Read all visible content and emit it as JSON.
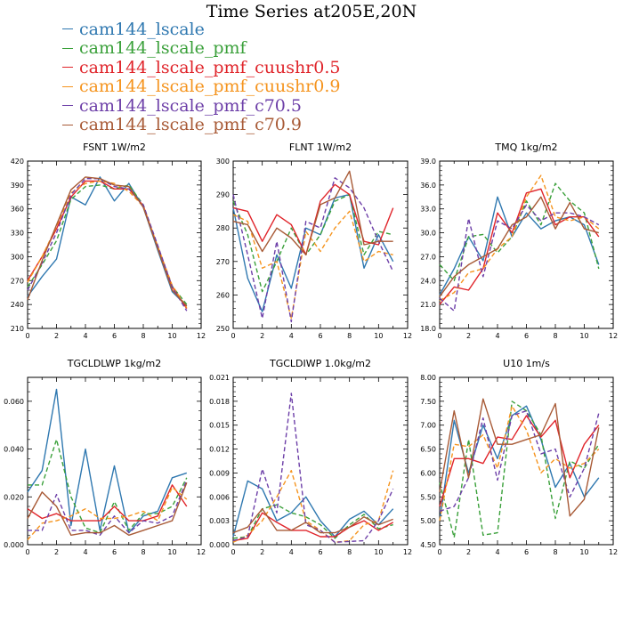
{
  "title": "Time Series at205E,20N",
  "series_styles": [
    {
      "name": "cam144_lscale",
      "color": "#2f78b0",
      "dash": "solid"
    },
    {
      "name": "cam144_lscale_pmf",
      "color": "#3aa03a",
      "dash": "dash"
    },
    {
      "name": "cam144_lscale_pmf_cuushr0.5",
      "color": "#e0242a",
      "dash": "solid"
    },
    {
      "name": "cam144_lscale_pmf_cuushr0.9",
      "color": "#f5941e",
      "dash": "dash"
    },
    {
      "name": "cam144_lscale_pmf_c70.5",
      "color": "#6d3fa8",
      "dash": "dash"
    },
    {
      "name": "cam144_lscale_pmf_c70.9",
      "color": "#a85a36",
      "dash": "solid"
    }
  ],
  "chart_data": [
    {
      "type": "line",
      "title": "FSNT   1W/m2",
      "x": [
        0,
        1,
        2,
        3,
        4,
        5,
        6,
        7,
        8,
        9,
        10,
        11
      ],
      "xlim": [
        0,
        12
      ],
      "xticks": [
        0,
        2,
        4,
        6,
        8,
        10,
        12
      ],
      "ylim": [
        210,
        420
      ],
      "yticks": [
        "210",
        "240",
        "270",
        "300",
        "330",
        "360",
        "390",
        "420"
      ],
      "series": [
        {
          "name": "cam144_lscale",
          "values": [
            250,
            275,
            297,
            375,
            365,
            400,
            370,
            392,
            362,
            308,
            256,
            238
          ]
        },
        {
          "name": "cam144_lscale_pmf",
          "values": [
            262,
            290,
            320,
            372,
            388,
            390,
            385,
            390,
            365,
            310,
            263,
            240
          ]
        },
        {
          "name": "cam144_lscale_pmf_cuushr0.5",
          "values": [
            270,
            300,
            335,
            375,
            395,
            395,
            385,
            385,
            364,
            312,
            262,
            235
          ]
        },
        {
          "name": "cam144_lscale_pmf_cuushr0.9",
          "values": [
            268,
            300,
            338,
            380,
            392,
            395,
            392,
            382,
            363,
            313,
            264,
            236
          ]
        },
        {
          "name": "cam144_lscale_pmf_c70.5",
          "values": [
            258,
            292,
            330,
            378,
            398,
            398,
            388,
            385,
            365,
            314,
            262,
            232
          ]
        },
        {
          "name": "cam144_lscale_pmf_c70.9",
          "values": [
            246,
            295,
            340,
            384,
            400,
            398,
            390,
            388,
            362,
            310,
            258,
            238
          ]
        }
      ]
    },
    {
      "type": "line",
      "title": "FLNT   1W/m2",
      "x": [
        0,
        1,
        2,
        3,
        4,
        5,
        6,
        7,
        8,
        9,
        10,
        11
      ],
      "xlim": [
        0,
        12
      ],
      "xticks": [
        0,
        2,
        4,
        6,
        8,
        10,
        12
      ],
      "ylim": [
        250,
        300
      ],
      "yticks": [
        "250",
        "260",
        "270",
        "280",
        "290",
        "300"
      ],
      "series": [
        {
          "name": "cam144_lscale",
          "values": [
            286,
            265,
            255,
            272,
            262,
            280,
            278,
            289,
            290,
            268,
            278,
            270
          ]
        },
        {
          "name": "cam144_lscale_pmf",
          "values": [
            288,
            278,
            261,
            270,
            280,
            272,
            278,
            288,
            290,
            272,
            279,
            278
          ]
        },
        {
          "name": "cam144_lscale_pmf_cuushr0.5",
          "values": [
            286,
            285,
            276,
            284,
            281,
            272,
            288,
            293,
            290,
            276,
            275,
            286
          ]
        },
        {
          "name": "cam144_lscale_pmf_cuushr0.9",
          "values": [
            284,
            282,
            268,
            270,
            253,
            279,
            273,
            280,
            285,
            270,
            273,
            272
          ]
        },
        {
          "name": "cam144_lscale_pmf_c70.5",
          "values": [
            290,
            272,
            253,
            276,
            252,
            282,
            280,
            295,
            292,
            286,
            276,
            267
          ]
        },
        {
          "name": "cam144_lscale_pmf_c70.9",
          "values": [
            282,
            281,
            273,
            280,
            277,
            272,
            287,
            289,
            297,
            275,
            276,
            276
          ]
        }
      ]
    },
    {
      "type": "line",
      "title": "TMQ   1kg/m2",
      "x": [
        0,
        1,
        2,
        3,
        4,
        5,
        6,
        7,
        8,
        9,
        10,
        11
      ],
      "xlim": [
        0,
        12
      ],
      "xticks": [
        0,
        2,
        4,
        6,
        8,
        10,
        12
      ],
      "ylim": [
        18.0,
        39.0
      ],
      "yticks": [
        "18.0",
        "21.0",
        "24.0",
        "27.0",
        "30.0",
        "33.0",
        "36.0",
        "39.0"
      ],
      "series": [
        {
          "name": "cam144_lscale",
          "values": [
            22.2,
            25.5,
            29.5,
            26.5,
            34.5,
            29.5,
            32.5,
            30.5,
            31.5,
            32,
            31,
            26
          ]
        },
        {
          "name": "cam144_lscale_pmf",
          "values": [
            26,
            24,
            29.5,
            29.8,
            27.5,
            29.5,
            34,
            31,
            36.2,
            34,
            32.5,
            25.5
          ]
        },
        {
          "name": "cam144_lscale_pmf_cuushr0.5",
          "values": [
            21,
            23.2,
            22.8,
            25.5,
            32.5,
            30,
            35,
            35.5,
            31,
            32,
            32,
            29.5
          ]
        },
        {
          "name": "cam144_lscale_pmf_cuushr0.9",
          "values": [
            21.5,
            22.5,
            25,
            25.5,
            28,
            29.5,
            34.5,
            37.2,
            32,
            31.5,
            32,
            30.5
          ]
        },
        {
          "name": "cam144_lscale_pmf_c70.5",
          "values": [
            21.8,
            20.2,
            31.8,
            24.5,
            31.5,
            30.5,
            33.5,
            31.5,
            32.5,
            32.5,
            32,
            31
          ]
        },
        {
          "name": "cam144_lscale_pmf_c70.9",
          "values": [
            22,
            24.5,
            26,
            27,
            28,
            31,
            32,
            34.5,
            30.5,
            33.8,
            30.5,
            30
          ]
        }
      ]
    },
    {
      "type": "line",
      "title": "TGCLDLWP   1kg/m2",
      "x": [
        0,
        1,
        2,
        3,
        4,
        5,
        6,
        7,
        8,
        9,
        10,
        11
      ],
      "xlim": [
        0,
        12
      ],
      "xticks": [
        0,
        2,
        4,
        6,
        8,
        10,
        12
      ],
      "ylim": [
        0,
        0.07
      ],
      "yticks": [
        "0.000",
        "0.020",
        "0.040",
        "0.060"
      ],
      "series": [
        {
          "name": "cam144_lscale",
          "values": [
            0.022,
            0.031,
            0.065,
            0.008,
            0.04,
            0.006,
            0.033,
            0.005,
            0.012,
            0.014,
            0.028,
            0.03
          ]
        },
        {
          "name": "cam144_lscale_pmf",
          "values": [
            0.025,
            0.025,
            0.044,
            0.02,
            0.007,
            0.005,
            0.018,
            0.006,
            0.013,
            0.013,
            0.016,
            0.028
          ]
        },
        {
          "name": "cam144_lscale_pmf_cuushr0.5",
          "values": [
            0.015,
            0.011,
            0.013,
            0.01,
            0.01,
            0.01,
            0.016,
            0.01,
            0.01,
            0.012,
            0.025,
            0.016
          ]
        },
        {
          "name": "cam144_lscale_pmf_cuushr0.9",
          "values": [
            0.002,
            0.009,
            0.01,
            0.012,
            0.015,
            0.011,
            0.011,
            0.012,
            0.014,
            0.01,
            0.024,
            0.019
          ]
        },
        {
          "name": "cam144_lscale_pmf_c70.5",
          "values": [
            0.006,
            0.006,
            0.021,
            0.006,
            0.006,
            0.004,
            0.012,
            0.005,
            0.01,
            0.009,
            0.012,
            0.027
          ]
        },
        {
          "name": "cam144_lscale_pmf_c70.9",
          "values": [
            0.011,
            0.022,
            0.016,
            0.004,
            0.005,
            0.005,
            0.008,
            0.004,
            0.006,
            0.008,
            0.01,
            0.026
          ]
        }
      ]
    },
    {
      "type": "line",
      "title": "TGCLDIWP   1.0kg/m2",
      "x": [
        0,
        1,
        2,
        3,
        4,
        5,
        6,
        7,
        8,
        9,
        10,
        11
      ],
      "xlim": [
        0,
        12
      ],
      "xticks": [
        0,
        2,
        4,
        6,
        8,
        10,
        12
      ],
      "ylim": [
        0,
        0.021
      ],
      "yticks": [
        "0.000",
        "0.003",
        "0.006",
        "0.009",
        "0.012",
        "0.015",
        "0.018",
        "0.021"
      ],
      "series": [
        {
          "name": "cam144_lscale",
          "values": [
            0.001,
            0.008,
            0.007,
            0.003,
            0.004,
            0.006,
            0.003,
            0.001,
            0.0032,
            0.0042,
            0.0025,
            0.0045
          ]
        },
        {
          "name": "cam144_lscale_pmf",
          "values": [
            0.0008,
            0.001,
            0.0045,
            0.005,
            0.004,
            0.0035,
            0.0025,
            0.0008,
            0.0025,
            0.0038,
            0.002,
            0.0025
          ]
        },
        {
          "name": "cam144_lscale_pmf_cuushr0.5",
          "values": [
            0.0005,
            0.0008,
            0.004,
            0.0028,
            0.0018,
            0.0018,
            0.001,
            0.001,
            0.0022,
            0.003,
            0.0018,
            0.0028
          ]
        },
        {
          "name": "cam144_lscale_pmf_cuushr0.9",
          "values": [
            0.0003,
            0.0012,
            0.003,
            0.006,
            0.0093,
            0.003,
            0.0018,
            0.0003,
            0.0005,
            0.0025,
            0.003,
            0.0093
          ]
        },
        {
          "name": "cam144_lscale_pmf_c70.5",
          "values": [
            0.0005,
            0.001,
            0.0095,
            0.004,
            0.019,
            0.0025,
            0.0018,
            0.0003,
            0.0004,
            0.0005,
            0.003,
            0.007
          ]
        },
        {
          "name": "cam144_lscale_pmf_c70.9",
          "values": [
            0.0015,
            0.0022,
            0.0045,
            0.0018,
            0.0018,
            0.0028,
            0.0015,
            0.0015,
            0.0022,
            0.0035,
            0.0025,
            0.0032
          ]
        }
      ]
    },
    {
      "type": "line",
      "title": "U10   1m/s",
      "x": [
        0,
        1,
        2,
        3,
        4,
        5,
        6,
        7,
        8,
        9,
        10,
        11
      ],
      "xlim": [
        0,
        12
      ],
      "xticks": [
        0,
        2,
        4,
        6,
        8,
        10,
        12
      ],
      "ylim": [
        4.5,
        8.0
      ],
      "yticks": [
        "4.50",
        "5.00",
        "5.50",
        "6.00",
        "6.50",
        "7.00",
        "7.50",
        "8.00"
      ],
      "series": [
        {
          "name": "cam144_lscale",
          "values": [
            5.0,
            7.1,
            6.0,
            7.0,
            6.3,
            7.2,
            7.4,
            6.7,
            5.7,
            6.2,
            5.5,
            5.9
          ]
        },
        {
          "name": "cam144_lscale_pmf",
          "values": [
            5.8,
            4.65,
            6.7,
            4.7,
            4.75,
            7.5,
            7.3,
            6.8,
            5.05,
            6.25,
            6.1,
            6.6
          ]
        },
        {
          "name": "cam144_lscale_pmf_cuushr0.5",
          "values": [
            5.3,
            6.3,
            6.3,
            6.2,
            6.75,
            6.7,
            7.2,
            6.75,
            7.1,
            5.9,
            6.6,
            7.0
          ]
        },
        {
          "name": "cam144_lscale_pmf_cuushr0.9",
          "values": [
            5.0,
            6.6,
            6.55,
            6.8,
            6.1,
            7.4,
            6.9,
            6.0,
            6.3,
            6.1,
            6.2,
            6.5
          ]
        },
        {
          "name": "cam144_lscale_pmf_c70.5",
          "values": [
            5.2,
            5.3,
            5.9,
            7.15,
            5.85,
            7.2,
            7.3,
            6.4,
            6.5,
            5.5,
            6.1,
            7.25
          ]
        },
        {
          "name": "cam144_lscale_pmf_c70.9",
          "values": [
            5.6,
            7.3,
            5.9,
            7.55,
            6.6,
            6.6,
            6.7,
            6.8,
            7.45,
            5.1,
            5.45,
            6.95
          ]
        }
      ]
    }
  ]
}
